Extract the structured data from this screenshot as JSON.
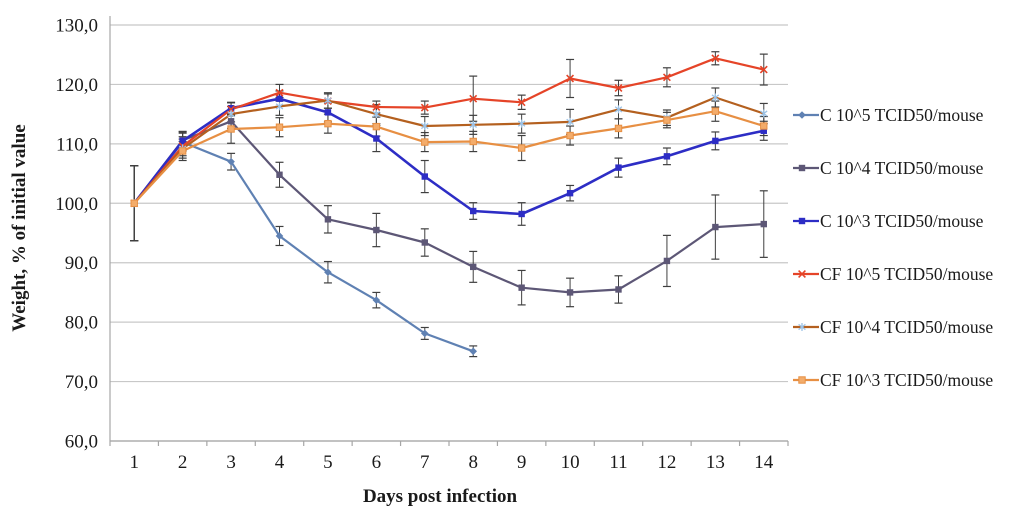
{
  "chart_data": {
    "type": "line",
    "title": "",
    "xlabel": "Days post infection",
    "ylabel": "Weight, % of initial value",
    "x": [
      1,
      2,
      3,
      4,
      5,
      6,
      7,
      8,
      9,
      10,
      11,
      12,
      13,
      14
    ],
    "x_tick_labels": [
      "1",
      "2",
      "3",
      "4",
      "5",
      "6",
      "7",
      "8",
      "9",
      "10",
      "11",
      "12",
      "13",
      "14"
    ],
    "y_tick_labels": [
      "60,0",
      "70,0",
      "80,0",
      "90,0",
      "100,0",
      "110,0",
      "120,0",
      "130,0"
    ],
    "ylim": [
      60,
      130
    ],
    "y_step": 10,
    "grid": true,
    "legend_position": "right",
    "error_bars": true,
    "series": [
      {
        "name": "C 10^5 TCID50/mouse",
        "color": "#5F81B3",
        "marker": "diamond",
        "marker_color": "#5F81B3",
        "line_width": 2.2,
        "values": [
          100.0,
          110.3,
          107.0,
          94.5,
          88.4,
          83.7,
          78.1,
          75.1,
          null,
          null,
          null,
          null,
          null,
          null
        ],
        "errors": [
          6.3,
          1.5,
          1.4,
          1.6,
          1.8,
          1.3,
          1.0,
          0.9,
          null,
          null,
          null,
          null,
          null,
          null
        ]
      },
      {
        "name": "C 10^4 TCID50/mouse",
        "color": "#5D5776",
        "marker": "square",
        "marker_color": "#5D5776",
        "line_width": 2.2,
        "values": [
          100.0,
          110.6,
          113.8,
          104.8,
          97.3,
          95.5,
          93.4,
          89.3,
          85.8,
          85.0,
          85.5,
          90.3,
          96.0,
          96.5
        ],
        "errors": [
          6.3,
          1.5,
          1.2,
          2.1,
          2.3,
          2.8,
          2.3,
          2.6,
          2.9,
          2.4,
          2.3,
          4.3,
          5.4,
          5.6
        ]
      },
      {
        "name": "C 10^3 TCID50/mouse",
        "color": "#2D2DC5",
        "marker": "square",
        "marker_color": "#2D2DC5",
        "line_width": 2.6,
        "values": [
          100.0,
          110.5,
          116.0,
          117.6,
          115.3,
          110.9,
          104.5,
          98.7,
          98.2,
          101.7,
          106.0,
          107.9,
          110.5,
          112.2
        ],
        "errors": [
          6.3,
          1.5,
          1.0,
          1.3,
          1.6,
          2.2,
          2.7,
          1.4,
          1.9,
          1.3,
          1.6,
          1.4,
          1.5,
          1.6
        ]
      },
      {
        "name": "CF 10^5 TCID50/mouse",
        "color": "#E54428",
        "marker": "x",
        "marker_color": "#E54428",
        "line_width": 2.2,
        "values": [
          100.0,
          109.6,
          115.8,
          118.6,
          117.2,
          116.2,
          116.1,
          117.6,
          117.0,
          121.0,
          119.4,
          121.2,
          124.4,
          122.5
        ],
        "errors": [
          6.3,
          1.6,
          1.1,
          1.4,
          1.2,
          1.0,
          1.1,
          3.8,
          1.2,
          3.2,
          1.3,
          1.6,
          1.1,
          2.6
        ]
      },
      {
        "name": "CF 10^4 TCID50/mouse",
        "color": "#B4601F",
        "marker": "asterisk",
        "marker_color": "#9DC3E6",
        "line_width": 2.2,
        "values": [
          100.0,
          109.2,
          115.0,
          116.3,
          117.3,
          115.0,
          113.0,
          113.2,
          113.4,
          113.7,
          115.8,
          114.4,
          117.8,
          115.1
        ],
        "errors": [
          6.3,
          1.6,
          1.3,
          1.5,
          1.3,
          1.6,
          1.6,
          1.6,
          1.6,
          2.1,
          1.6,
          1.3,
          1.6,
          1.7
        ]
      },
      {
        "name": "CF 10^3 TCID50/mouse",
        "color": "#E78F43",
        "marker": "square-light",
        "marker_color": "#F3AC6B",
        "line_width": 2.2,
        "values": [
          100.0,
          108.8,
          112.5,
          112.8,
          113.4,
          112.9,
          110.3,
          110.4,
          109.3,
          111.4,
          112.6,
          114.0,
          115.5,
          113.0
        ],
        "errors": [
          6.3,
          1.6,
          2.4,
          1.6,
          1.6,
          1.6,
          1.6,
          1.7,
          2.1,
          1.6,
          1.6,
          1.3,
          1.7,
          1.6
        ]
      }
    ]
  },
  "style_colors": {
    "gridline": "#C8C8C8",
    "axis_line": "#A6A6A6",
    "error_bar": "#3F3F3F",
    "text": "#1a1a1a"
  }
}
